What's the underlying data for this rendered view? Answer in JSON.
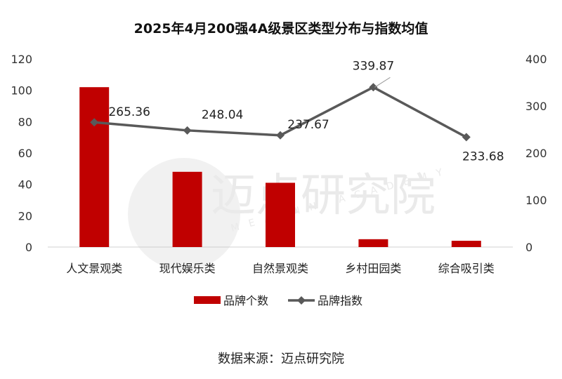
{
  "chart_data": {
    "type": "bar",
    "title": "2025年4月200强4A级景区类型分布与指数均值",
    "categories": [
      "人文景观类",
      "现代娱乐类",
      "自然景观类",
      "乡村田园类",
      "综合吸引类"
    ],
    "series": [
      {
        "name": "品牌个数",
        "type": "bar",
        "axis": "left",
        "color": "#C00000",
        "values": [
          102,
          48,
          41,
          5,
          4
        ]
      },
      {
        "name": "品牌指数",
        "type": "line",
        "axis": "right",
        "color": "#595959",
        "values": [
          265.36,
          248.04,
          237.67,
          339.87,
          233.68
        ],
        "labels": [
          "265.36",
          "248.04",
          "237.67",
          "339.87",
          "233.68"
        ]
      }
    ],
    "y_left": {
      "min": 0,
      "max": 120,
      "ticks": [
        "0",
        "20",
        "40",
        "60",
        "80",
        "100",
        "120"
      ]
    },
    "y_right": {
      "min": 0,
      "max": 400,
      "ticks": [
        "0",
        "100",
        "200",
        "300",
        "400"
      ]
    },
    "grid": false,
    "legend_position": "bottom"
  },
  "source": "数据来源：迈点研究院",
  "watermark": {
    "text": "迈点研究院",
    "subtext": "MEADIN ACADEMY"
  }
}
